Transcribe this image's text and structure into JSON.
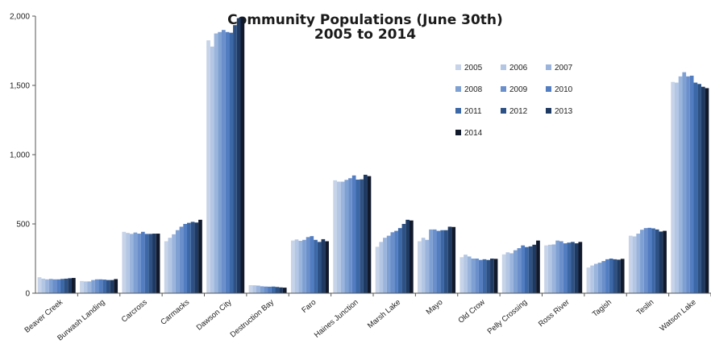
{
  "chart_data": {
    "type": "bar",
    "title": "Community Populations (June 30th)",
    "subtitle": "2005 to 2014",
    "xlabel": "",
    "ylabel": "",
    "ylim": [
      0,
      2000
    ],
    "yticks": [
      0,
      500,
      1000,
      1500,
      2000
    ],
    "ytick_labels": [
      "0",
      "500",
      "1,000",
      "1,500",
      "2,000"
    ],
    "grid": false,
    "legend_position": "top-right",
    "categories": [
      "Beaver Creek",
      "Burwash Landing",
      "Carcross",
      "Carmacks",
      "Dawson City",
      "Destruction Bay",
      "Faro",
      "Haines  Junction",
      "Marsh Lake",
      "Mayo",
      "Old Crow",
      "Pelly Crossing",
      "Ross River",
      "Tagish",
      "Teslin",
      "Watson Lake"
    ],
    "series": [
      {
        "name": "2005",
        "color": "#c6d3e8",
        "values": [
          115,
          88,
          443,
          375,
          1825,
          58,
          380,
          815,
          335,
          375,
          260,
          280,
          345,
          185,
          415,
          1525
        ]
      },
      {
        "name": "2006",
        "color": "#b3c6e3",
        "values": [
          105,
          85,
          435,
          400,
          1780,
          57,
          388,
          805,
          370,
          400,
          278,
          295,
          350,
          200,
          410,
          1520
        ]
      },
      {
        "name": "2007",
        "color": "#9ab4dc",
        "values": [
          100,
          85,
          428,
          425,
          1875,
          55,
          378,
          805,
          400,
          385,
          265,
          288,
          352,
          212,
          430,
          1565
        ]
      },
      {
        "name": "2008",
        "color": "#7ea0d2",
        "values": [
          103,
          95,
          438,
          455,
          1885,
          50,
          385,
          818,
          415,
          460,
          250,
          310,
          380,
          220,
          458,
          1595
        ]
      },
      {
        "name": "2009",
        "color": "#6a8fcb",
        "values": [
          100,
          100,
          430,
          480,
          1900,
          48,
          405,
          830,
          440,
          460,
          250,
          325,
          375,
          232,
          470,
          1565
        ]
      },
      {
        "name": "2010",
        "color": "#527dc1",
        "values": [
          100,
          100,
          443,
          500,
          1885,
          47,
          412,
          850,
          450,
          450,
          240,
          345,
          360,
          245,
          472,
          1570
        ]
      },
      {
        "name": "2011",
        "color": "#3c68a8",
        "values": [
          103,
          98,
          428,
          508,
          1880,
          48,
          385,
          820,
          470,
          455,
          245,
          333,
          365,
          250,
          468,
          1520
        ]
      },
      {
        "name": "2012",
        "color": "#2d5184",
        "values": [
          105,
          95,
          428,
          515,
          1935,
          45,
          370,
          822,
          500,
          455,
          240,
          338,
          370,
          245,
          460,
          1510
        ]
      },
      {
        "name": "2013",
        "color": "#1f3a62",
        "values": [
          108,
          95,
          430,
          510,
          1985,
          42,
          390,
          855,
          530,
          480,
          250,
          350,
          360,
          242,
          445,
          1490
        ]
      },
      {
        "name": "2014",
        "color": "#111a2c",
        "values": [
          110,
          102,
          430,
          530,
          1995,
          40,
          375,
          845,
          525,
          478,
          248,
          380,
          370,
          248,
          450,
          1480
        ]
      }
    ]
  }
}
